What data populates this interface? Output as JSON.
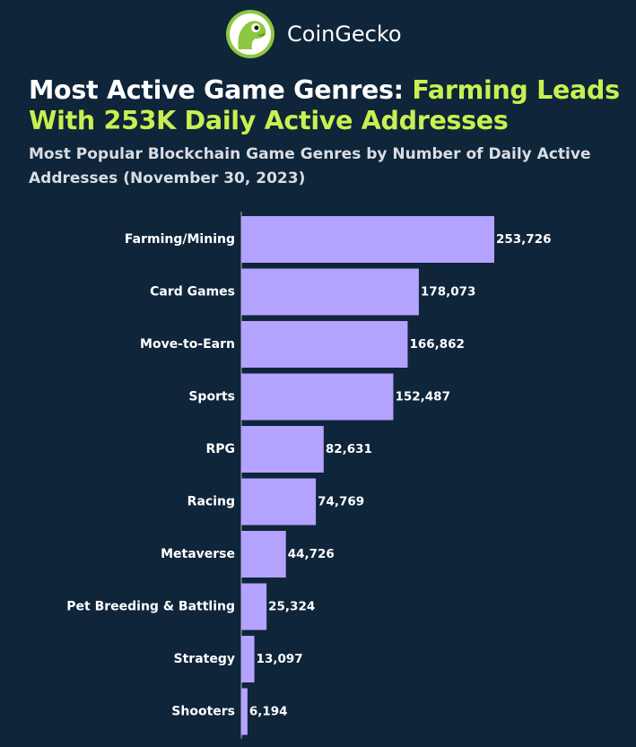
{
  "brand": {
    "name": "CoinGecko",
    "logo_icon": "gecko-logo-icon"
  },
  "header": {
    "title_prefix": "Most Active Game Genres:",
    "title_highlight": "Farming Leads With 253K Daily Active Addresses",
    "subtitle": "Most Popular Blockchain Game Genres by Number of Daily Active Addresses (November 30, 2023)"
  },
  "colors": {
    "background": "#0e253a",
    "bar": "#b4a2ff",
    "highlight": "#c8f050",
    "axis": "#aab4bf"
  },
  "chart_data": {
    "type": "bar",
    "orientation": "horizontal",
    "categories": [
      "Farming/Mining",
      "Card Games",
      "Move-to-Earn",
      "Sports",
      "RPG",
      "Racing",
      "Metaverse",
      "Pet Breeding & Battling",
      "Strategy",
      "Shooters"
    ],
    "values": [
      253726,
      178073,
      166862,
      152487,
      82631,
      74769,
      44726,
      25324,
      13097,
      6194
    ],
    "value_labels": [
      "253,726",
      "178,073",
      "166,862",
      "152,487",
      "82,631",
      "74,769",
      "44,726",
      "25,324",
      "13,097",
      "6,194"
    ],
    "xlim": [
      0,
      253726
    ],
    "grid": false
  }
}
